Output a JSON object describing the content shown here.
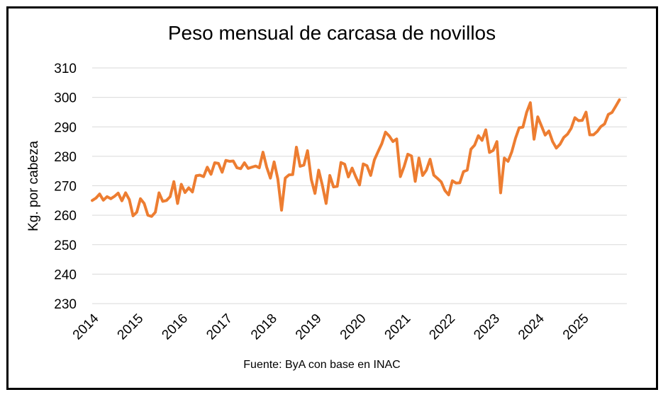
{
  "chart_data": {
    "type": "line",
    "title": "Peso mensual de carcasa de novillos",
    "xlabel": "",
    "ylabel": "Kg. por cabeza",
    "source": "Fuente: ByA con base en INAC",
    "ylim": [
      230,
      310
    ],
    "y_ticks": [
      310,
      300,
      290,
      280,
      270,
      260,
      250,
      240,
      230
    ],
    "x_tick_labels": [
      "2014",
      "2015",
      "2016",
      "2017",
      "2018",
      "2019",
      "2020",
      "2021",
      "2022",
      "2023",
      "2024",
      "2025"
    ],
    "x_start": 2014,
    "x_end": 2026,
    "grid": true,
    "legend": "none",
    "line_color": "#ED7D31",
    "series": [
      {
        "name": "Peso mensual de carcasa de novillos",
        "values": [
          265.0,
          265.8,
          267.2,
          265.1,
          266.3,
          265.6,
          266.4,
          267.5,
          264.9,
          267.6,
          265.3,
          259.8,
          261.0,
          265.6,
          264.0,
          260.0,
          259.6,
          261.0,
          267.6,
          264.7,
          265.0,
          266.3,
          271.4,
          264.0,
          270.5,
          267.7,
          269.3,
          267.9,
          273.4,
          273.6,
          273.1,
          276.3,
          273.9,
          277.8,
          277.6,
          274.6,
          278.6,
          278.3,
          278.4,
          276.1,
          275.8,
          277.8,
          275.9,
          276.3,
          276.7,
          276.1,
          281.4,
          276.3,
          272.6,
          278.1,
          272.3,
          261.7,
          272.6,
          273.7,
          273.8,
          283.1,
          276.6,
          277.0,
          281.9,
          272.2,
          267.4,
          275.3,
          270.1,
          264.0,
          273.5,
          269.6,
          269.8,
          277.9,
          277.3,
          273.0,
          276.0,
          273.0,
          270.3,
          277.4,
          276.8,
          273.5,
          278.8,
          281.6,
          284.3,
          288.2,
          286.9,
          285.0,
          285.9,
          273.1,
          276.5,
          280.7,
          280.1,
          271.5,
          279.4,
          273.5,
          275.3,
          279.0,
          273.6,
          272.5,
          271.3,
          268.4,
          266.9,
          271.7,
          270.9,
          271.0,
          274.8,
          275.3,
          282.4,
          283.8,
          287.0,
          285.4,
          289.0,
          281.3,
          282.0,
          285.0,
          267.6,
          279.4,
          278.3,
          281.5,
          286.1,
          289.7,
          289.9,
          294.9,
          298.2,
          285.8,
          293.4,
          290.3,
          287.2,
          288.6,
          285.0,
          282.8,
          284.1,
          286.4,
          287.5,
          289.5,
          293.1,
          292.1,
          292.2,
          295.0,
          287.3,
          287.3,
          288.4,
          290.1,
          291.0,
          294.2,
          294.9,
          297.0,
          299.2
        ]
      }
    ]
  }
}
